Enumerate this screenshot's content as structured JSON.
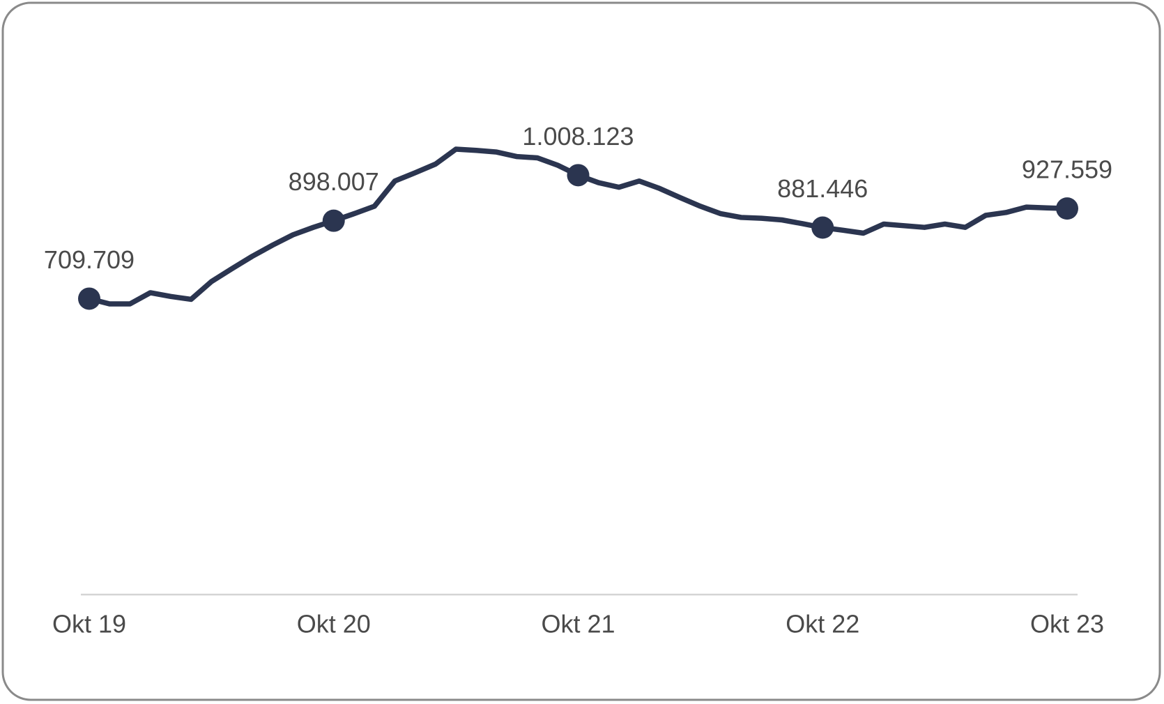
{
  "chart_data": {
    "type": "line",
    "categories": [
      "Okt 19",
      null,
      null,
      null,
      null,
      null,
      null,
      null,
      null,
      null,
      null,
      null,
      "Okt 20",
      null,
      null,
      null,
      null,
      null,
      null,
      null,
      null,
      null,
      null,
      null,
      "Okt 21",
      null,
      null,
      null,
      null,
      null,
      null,
      null,
      null,
      null,
      null,
      null,
      "Okt 22",
      null,
      null,
      null,
      null,
      null,
      null,
      null,
      null,
      null,
      null,
      null,
      "Okt 23"
    ],
    "series": [
      {
        "color": "#2b3550",
        "values": [
          709709,
          697000,
          697000,
          724000,
          715000,
          708000,
          751000,
          782000,
          812000,
          839000,
          864000,
          882000,
          898007,
          915000,
          933000,
          994000,
          1014000,
          1035000,
          1071000,
          1068000,
          1064000,
          1053000,
          1050000,
          1032000,
          1008123,
          990000,
          979000,
          994000,
          976000,
          954000,
          933000,
          915000,
          906000,
          904000,
          900000,
          891000,
          881446,
          875000,
          868000,
          890000,
          886000,
          882000,
          890000,
          882000,
          911000,
          918000,
          931000,
          929000,
          927559
        ],
        "value_labels": [
          "709.709",
          null,
          null,
          null,
          null,
          null,
          null,
          null,
          null,
          null,
          null,
          null,
          "898.007",
          null,
          null,
          null,
          null,
          null,
          null,
          null,
          null,
          null,
          null,
          null,
          "1.008.123",
          null,
          null,
          null,
          null,
          null,
          null,
          null,
          null,
          null,
          null,
          null,
          "881.446",
          null,
          null,
          null,
          null,
          null,
          null,
          null,
          null,
          null,
          null,
          null,
          "927.559"
        ]
      }
    ]
  }
}
